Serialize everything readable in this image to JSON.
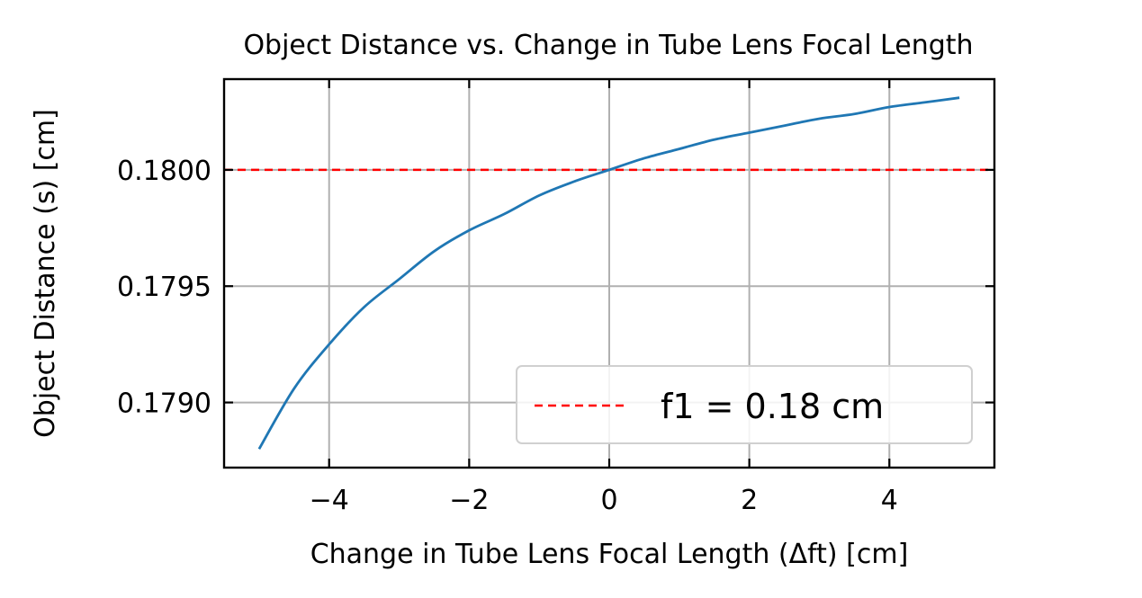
{
  "chart_data": {
    "type": "line",
    "title": "Object Distance vs. Change in Tube Lens Focal Length",
    "xlabel": "Change in Tube Lens Focal Length (Δft) [cm]",
    "ylabel": "Object Distance (s) [cm]",
    "xlim": [
      -5.5,
      5.5
    ],
    "ylim": [
      0.17872,
      0.18039
    ],
    "x_ticks": [
      -4,
      -2,
      0,
      2,
      4
    ],
    "x_tick_labels": [
      "−4",
      "−2",
      "0",
      "2",
      "4"
    ],
    "y_ticks": [
      0.179,
      0.1795,
      0.18
    ],
    "y_tick_labels": [
      "0.1790",
      "0.1795",
      "0.1800"
    ],
    "grid": true,
    "series": [
      {
        "color": "#1f77b4",
        "x": [
          -5,
          -4.5,
          -4,
          -3.5,
          -3,
          -2.5,
          -2,
          -1.5,
          -1,
          -0.5,
          0,
          0.5,
          1,
          1.5,
          2,
          2.5,
          3,
          3.5,
          4,
          4.5,
          5
        ],
        "y": [
          0.1788,
          0.17906,
          0.17925,
          0.17941,
          0.17953,
          0.17965,
          0.17974,
          0.17981,
          0.17989,
          0.17995,
          0.18,
          0.18005,
          0.18009,
          0.18013,
          0.18016,
          0.18019,
          0.18022,
          0.18024,
          0.18027,
          0.18029,
          0.18031
        ]
      }
    ],
    "reference_lines": [
      {
        "name": "f1 = 0.18 cm",
        "y": 0.18,
        "color": "#ff0000",
        "style": "dashed"
      }
    ],
    "legend": {
      "placement": "lower-right",
      "entries": [
        "f1 = 0.18 cm"
      ]
    }
  }
}
